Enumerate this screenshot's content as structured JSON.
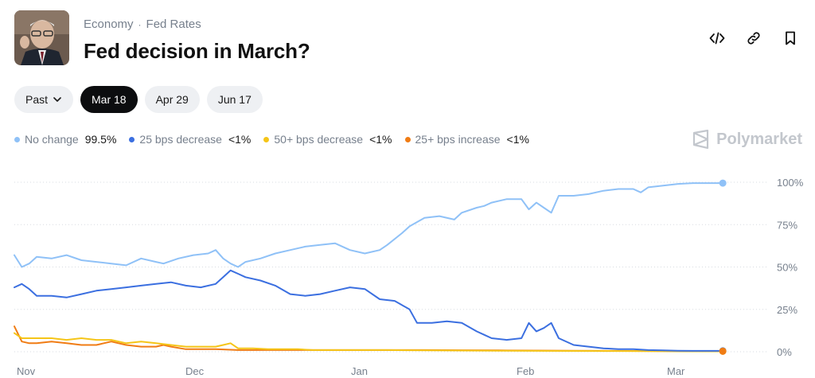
{
  "breadcrumb": {
    "category": "Economy",
    "separator": "·",
    "subcategory": "Fed Rates"
  },
  "market": {
    "title": "Fed decision in March?"
  },
  "actions": [
    "embed-icon",
    "link-icon",
    "bookmark-icon"
  ],
  "tabs": [
    {
      "label": "Past",
      "has_chevron": true,
      "active": false
    },
    {
      "label": "Mar 18",
      "active": true
    },
    {
      "label": "Apr 29",
      "active": false
    },
    {
      "label": "Jun 17",
      "active": false
    }
  ],
  "legend": [
    {
      "label": "No change",
      "value": "99.5%",
      "color": "#8fc1f7"
    },
    {
      "label": "25 bps decrease",
      "value": "<1%",
      "color": "#3b6fe0"
    },
    {
      "label": "50+ bps decrease",
      "value": "<1%",
      "color": "#f5c518"
    },
    {
      "label": "25+ bps increase",
      "value": "<1%",
      "color": "#f07c14"
    }
  ],
  "brand": {
    "name": "Polymarket"
  },
  "chart_data": {
    "type": "line",
    "x_ticks": [
      "Nov",
      "Dec",
      "Jan",
      "Feb",
      "Mar"
    ],
    "y_ticks": [
      "100%",
      "75%",
      "50%",
      "25%",
      "0%"
    ],
    "ylim": [
      0,
      100
    ],
    "grid": true,
    "series": [
      {
        "name": "No change",
        "color": "#8fc1f7",
        "points": [
          [
            0,
            57
          ],
          [
            1,
            50
          ],
          [
            2,
            52
          ],
          [
            3,
            56
          ],
          [
            5,
            55
          ],
          [
            7,
            57
          ],
          [
            9,
            54
          ],
          [
            11,
            53
          ],
          [
            13,
            52
          ],
          [
            15,
            51
          ],
          [
            17,
            55
          ],
          [
            19,
            53
          ],
          [
            20,
            52
          ],
          [
            22,
            55
          ],
          [
            24,
            57
          ],
          [
            26,
            58
          ],
          [
            27,
            60
          ],
          [
            28,
            55
          ],
          [
            29,
            52
          ],
          [
            30,
            50
          ],
          [
            31,
            53
          ],
          [
            33,
            55
          ],
          [
            35,
            58
          ],
          [
            37,
            60
          ],
          [
            39,
            62
          ],
          [
            41,
            63
          ],
          [
            43,
            64
          ],
          [
            45,
            60
          ],
          [
            47,
            58
          ],
          [
            49,
            60
          ],
          [
            50,
            63
          ],
          [
            52,
            70
          ],
          [
            53,
            74
          ],
          [
            55,
            79
          ],
          [
            57,
            80
          ],
          [
            59,
            78
          ],
          [
            60,
            82
          ],
          [
            62,
            85
          ],
          [
            63,
            86
          ],
          [
            64,
            88
          ],
          [
            66,
            90
          ],
          [
            68,
            90
          ],
          [
            69,
            84
          ],
          [
            70,
            88
          ],
          [
            71,
            85
          ],
          [
            72,
            82
          ],
          [
            73,
            92
          ],
          [
            75,
            92
          ],
          [
            77,
            93
          ],
          [
            79,
            95
          ],
          [
            81,
            96
          ],
          [
            83,
            96
          ],
          [
            84,
            94
          ],
          [
            85,
            97
          ],
          [
            87,
            98
          ],
          [
            89,
            99
          ],
          [
            91,
            99.5
          ],
          [
            95,
            99.5
          ]
        ]
      },
      {
        "name": "25 bps decrease",
        "color": "#3b6fe0",
        "points": [
          [
            0,
            38
          ],
          [
            1,
            40
          ],
          [
            2,
            37
          ],
          [
            3,
            33
          ],
          [
            5,
            33
          ],
          [
            7,
            32
          ],
          [
            9,
            34
          ],
          [
            11,
            36
          ],
          [
            13,
            37
          ],
          [
            15,
            38
          ],
          [
            17,
            39
          ],
          [
            19,
            40
          ],
          [
            21,
            41
          ],
          [
            23,
            39
          ],
          [
            25,
            38
          ],
          [
            27,
            40
          ],
          [
            28,
            44
          ],
          [
            29,
            48
          ],
          [
            30,
            46
          ],
          [
            31,
            44
          ],
          [
            33,
            42
          ],
          [
            35,
            39
          ],
          [
            37,
            34
          ],
          [
            39,
            33
          ],
          [
            41,
            34
          ],
          [
            43,
            36
          ],
          [
            45,
            38
          ],
          [
            47,
            37
          ],
          [
            49,
            31
          ],
          [
            51,
            30
          ],
          [
            53,
            25
          ],
          [
            54,
            17
          ],
          [
            56,
            17
          ],
          [
            58,
            18
          ],
          [
            60,
            17
          ],
          [
            62,
            12
          ],
          [
            63,
            10
          ],
          [
            64,
            8
          ],
          [
            66,
            7
          ],
          [
            68,
            8
          ],
          [
            69,
            17
          ],
          [
            70,
            12
          ],
          [
            71,
            14
          ],
          [
            72,
            17
          ],
          [
            73,
            8
          ],
          [
            75,
            4
          ],
          [
            77,
            3
          ],
          [
            79,
            2
          ],
          [
            81,
            1.5
          ],
          [
            83,
            1.5
          ],
          [
            85,
            1
          ],
          [
            87,
            0.8
          ],
          [
            89,
            0.6
          ],
          [
            91,
            0.5
          ],
          [
            95,
            0.5
          ]
        ]
      },
      {
        "name": "50+ bps decrease",
        "color": "#f5c518",
        "points": [
          [
            0,
            11
          ],
          [
            1,
            8
          ],
          [
            3,
            8
          ],
          [
            5,
            8
          ],
          [
            7,
            7
          ],
          [
            9,
            8
          ],
          [
            11,
            7
          ],
          [
            13,
            7
          ],
          [
            15,
            5
          ],
          [
            17,
            6
          ],
          [
            19,
            5
          ],
          [
            21,
            4
          ],
          [
            23,
            3
          ],
          [
            25,
            3
          ],
          [
            27,
            3
          ],
          [
            28,
            4
          ],
          [
            29,
            5
          ],
          [
            30,
            2
          ],
          [
            32,
            2
          ],
          [
            34,
            1.5
          ],
          [
            36,
            1.5
          ],
          [
            38,
            1.5
          ],
          [
            40,
            1
          ],
          [
            45,
            1
          ],
          [
            50,
            1
          ],
          [
            55,
            0.8
          ],
          [
            60,
            0.7
          ],
          [
            65,
            0.6
          ],
          [
            70,
            0.5
          ],
          [
            80,
            0.4
          ],
          [
            90,
            0.3
          ],
          [
            95,
            0.3
          ]
        ]
      },
      {
        "name": "25+ bps increase",
        "color": "#f07c14",
        "points": [
          [
            0,
            15
          ],
          [
            1,
            6
          ],
          [
            2,
            5
          ],
          [
            3,
            5
          ],
          [
            5,
            6
          ],
          [
            7,
            5
          ],
          [
            9,
            4
          ],
          [
            11,
            4
          ],
          [
            13,
            6
          ],
          [
            15,
            4
          ],
          [
            17,
            3
          ],
          [
            19,
            3
          ],
          [
            20,
            4
          ],
          [
            21,
            3
          ],
          [
            23,
            1.5
          ],
          [
            25,
            1.5
          ],
          [
            27,
            1.5
          ],
          [
            30,
            1
          ],
          [
            33,
            1
          ],
          [
            36,
            1
          ],
          [
            40,
            1
          ],
          [
            45,
            1
          ],
          [
            50,
            1
          ],
          [
            55,
            1
          ],
          [
            60,
            0.9
          ],
          [
            65,
            0.8
          ],
          [
            70,
            0.7
          ],
          [
            75,
            0.6
          ],
          [
            80,
            0.5
          ],
          [
            85,
            0.4
          ],
          [
            90,
            0.3
          ],
          [
            95,
            0.3
          ]
        ]
      }
    ]
  }
}
